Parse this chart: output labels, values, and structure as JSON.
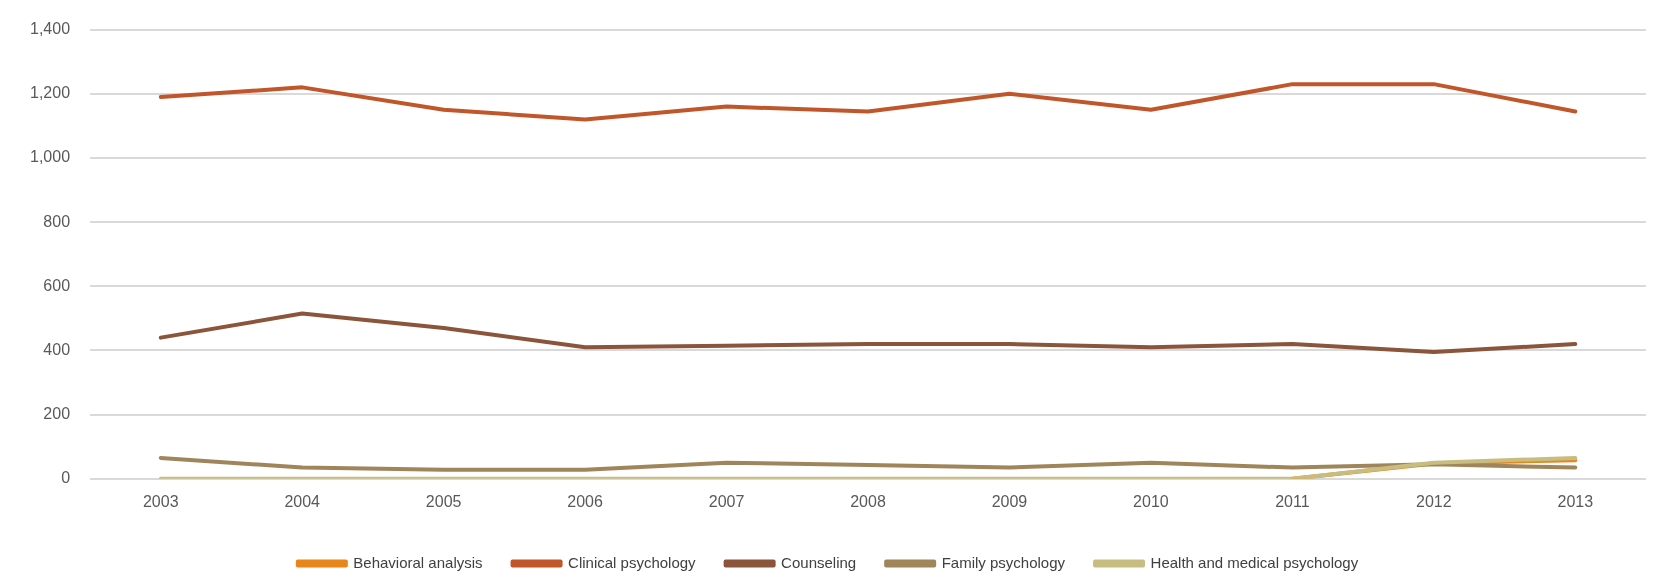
{
  "chart_data": {
    "type": "line",
    "categories": [
      "2003",
      "2004",
      "2005",
      "2006",
      "2007",
      "2008",
      "2009",
      "2010",
      "2011",
      "2012",
      "2013"
    ],
    "series": [
      {
        "name": "Behavioral analysis",
        "color": "#e8861a",
        "values": [
          null,
          null,
          null,
          null,
          null,
          null,
          null,
          null,
          0,
          48,
          58
        ]
      },
      {
        "name": "Clinical psychology",
        "color": "#c0562a",
        "values": [
          1190,
          1220,
          1150,
          1120,
          1160,
          1145,
          1200,
          1150,
          1230,
          1230,
          1145
        ]
      },
      {
        "name": "Counseling",
        "color": "#8a553a",
        "values": [
          440,
          515,
          470,
          410,
          415,
          420,
          420,
          410,
          420,
          395,
          420
        ]
      },
      {
        "name": "Family psychology",
        "color": "#a0855a",
        "values": [
          65,
          35,
          28,
          28,
          50,
          43,
          35,
          50,
          35,
          45,
          35
        ]
      },
      {
        "name": "Health and medical psychology",
        "color": "#c8bd80",
        "values": [
          0,
          0,
          0,
          0,
          0,
          0,
          0,
          0,
          0,
          50,
          65
        ]
      }
    ],
    "ylim": [
      0,
      1400
    ],
    "yticks": [
      {
        "value": 0,
        "label": "0"
      },
      {
        "value": 200,
        "label": "200"
      },
      {
        "value": 400,
        "label": "400"
      },
      {
        "value": 600,
        "label": "600"
      },
      {
        "value": 800,
        "label": "800"
      },
      {
        "value": 1000,
        "label": "1,000"
      },
      {
        "value": 1200,
        "label": "1,200"
      },
      {
        "value": 1400,
        "label": "1,400"
      }
    ],
    "grid": "y",
    "legend": "bottom",
    "marker": "none",
    "line_style": "solid"
  }
}
